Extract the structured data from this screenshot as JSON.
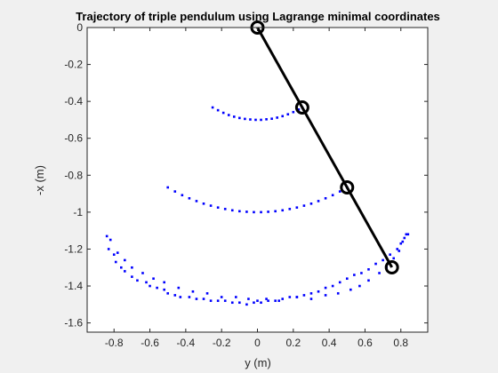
{
  "chart_data": {
    "type": "scatter",
    "title": "Trajectory of triple pendulum using Lagrange minimal coordinates",
    "xlabel": "y (m)",
    "ylabel": "-x (m)",
    "xlim": [
      -0.95,
      0.95
    ],
    "ylim": [
      -1.65,
      0
    ],
    "xticks": [
      -0.8,
      -0.6,
      -0.4,
      -0.2,
      0,
      0.2,
      0.4,
      0.6,
      0.8
    ],
    "yticks": [
      0,
      -0.2,
      -0.4,
      -0.6,
      -0.8,
      -1,
      -1.2,
      -1.4,
      -1.6
    ],
    "xtick_labels": [
      "-0.8",
      "-0.6",
      "-0.4",
      "-0.2",
      "0",
      "0.2",
      "0.4",
      "0.6",
      "0.8"
    ],
    "ytick_labels": [
      "0",
      "-0.2",
      "-0.4",
      "-0.6",
      "-0.8",
      "-1",
      "-1.2",
      "-1.4",
      "-1.6"
    ],
    "grid": false,
    "colors": {
      "trajectory": "#0000ff",
      "pendulum": "#000000",
      "axes_bg": "#ffffff",
      "figure_bg": "#f0f0f0"
    },
    "pendulum": {
      "x": [
        0,
        0.25,
        0.5,
        0.75
      ],
      "y": [
        0,
        -0.433,
        -0.866,
        -1.299
      ]
    },
    "series": [
      {
        "x": [
          -0.25,
          -0.22,
          -0.19,
          -0.16,
          -0.13,
          -0.1,
          -0.07,
          -0.04,
          -0.01,
          0.02,
          0.05,
          0.08,
          0.11,
          0.14,
          0.17,
          0.2,
          0.23,
          0.25
        ],
        "y": [
          -0.433,
          -0.448,
          -0.462,
          -0.474,
          -0.483,
          -0.49,
          -0.495,
          -0.498,
          -0.5,
          -0.5,
          -0.497,
          -0.494,
          -0.488,
          -0.48,
          -0.47,
          -0.458,
          -0.444,
          -0.433
        ]
      },
      {
        "x": [
          -0.5,
          -0.46,
          -0.42,
          -0.38,
          -0.34,
          -0.3,
          -0.26,
          -0.22,
          -0.18,
          -0.14,
          -0.1,
          -0.06,
          -0.02,
          0.02,
          0.06,
          0.1,
          0.14,
          0.18,
          0.22,
          0.26,
          0.3,
          0.34,
          0.38,
          0.42,
          0.46,
          0.5
        ],
        "y": [
          -0.866,
          -0.888,
          -0.908,
          -0.925,
          -0.94,
          -0.954,
          -0.965,
          -0.975,
          -0.983,
          -0.99,
          -0.995,
          -0.998,
          -1.0,
          -1.0,
          -0.998,
          -0.995,
          -0.99,
          -0.983,
          -0.975,
          -0.965,
          -0.954,
          -0.94,
          -0.925,
          -0.908,
          -0.888,
          -0.866
        ]
      },
      {
        "x": [
          -0.84,
          -0.82,
          -0.83,
          -0.8,
          -0.79,
          -0.76,
          -0.74,
          -0.7,
          -0.67,
          -0.62,
          -0.6,
          -0.56,
          -0.52,
          -0.5,
          -0.46,
          -0.43,
          -0.38,
          -0.34,
          -0.3,
          -0.26,
          -0.22,
          -0.18,
          -0.14,
          -0.1,
          -0.06,
          -0.02,
          0.0,
          0.02,
          0.06,
          0.1,
          0.14,
          0.18,
          0.22,
          0.26,
          0.3,
          0.34,
          0.38,
          0.42,
          0.46,
          0.5,
          0.54,
          0.58,
          0.62,
          0.66,
          0.7,
          0.74,
          0.78,
          0.8,
          0.82,
          0.83,
          0.84,
          0.81,
          0.79,
          0.76,
          0.72,
          0.68,
          0.62,
          0.57,
          0.52,
          0.45,
          0.38,
          0.3,
          0.22,
          0.12,
          0.05,
          -0.05,
          -0.12,
          -0.2,
          -0.28,
          -0.36,
          -0.44,
          -0.52,
          -0.58,
          -0.64,
          -0.7,
          -0.74,
          -0.78
        ],
        "y": [
          -1.13,
          -1.15,
          -1.2,
          -1.23,
          -1.27,
          -1.3,
          -1.32,
          -1.35,
          -1.37,
          -1.38,
          -1.4,
          -1.41,
          -1.42,
          -1.44,
          -1.45,
          -1.46,
          -1.46,
          -1.47,
          -1.47,
          -1.48,
          -1.48,
          -1.48,
          -1.49,
          -1.49,
          -1.5,
          -1.49,
          -1.48,
          -1.49,
          -1.48,
          -1.48,
          -1.47,
          -1.46,
          -1.46,
          -1.45,
          -1.44,
          -1.43,
          -1.41,
          -1.4,
          -1.38,
          -1.36,
          -1.34,
          -1.33,
          -1.31,
          -1.28,
          -1.26,
          -1.23,
          -1.2,
          -1.17,
          -1.14,
          -1.12,
          -1.12,
          -1.16,
          -1.21,
          -1.25,
          -1.3,
          -1.33,
          -1.37,
          -1.4,
          -1.42,
          -1.44,
          -1.45,
          -1.47,
          -1.46,
          -1.48,
          -1.47,
          -1.47,
          -1.46,
          -1.46,
          -1.44,
          -1.43,
          -1.41,
          -1.38,
          -1.36,
          -1.33,
          -1.3,
          -1.26,
          -1.22
        ]
      }
    ]
  }
}
